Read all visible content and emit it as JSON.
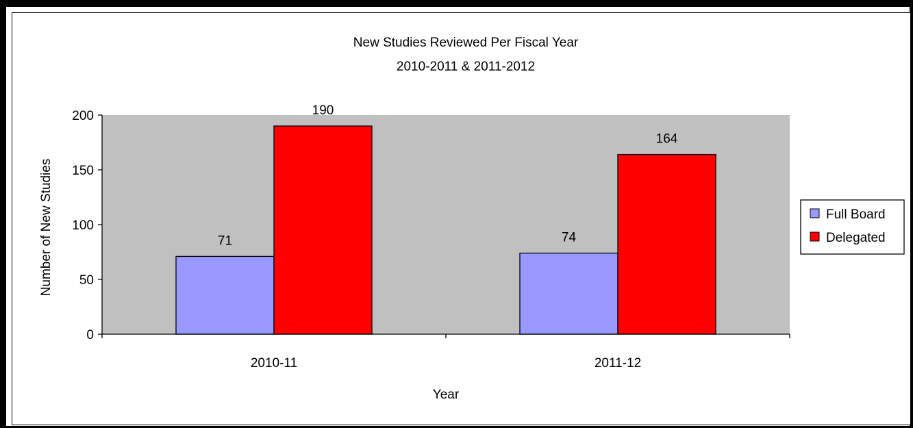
{
  "chart_data": {
    "type": "bar",
    "title": "New Studies Reviewed Per Fiscal Year",
    "subtitle": "2010-2011 & 2011-2012",
    "xlabel": "Year",
    "ylabel": "Number of New Studies",
    "categories": [
      "2010-11",
      "2011-12"
    ],
    "series": [
      {
        "name": "Full Board",
        "values": [
          71,
          74
        ],
        "color": "#9999ff"
      },
      {
        "name": "Delegated",
        "values": [
          190,
          164
        ],
        "color": "#ff0000"
      }
    ],
    "ylim": [
      0,
      200
    ],
    "yticks": [
      0,
      50,
      100,
      150,
      200
    ],
    "data_labels": true,
    "plot_background": "#c0c0c0",
    "grid": false,
    "legend_position": "right"
  }
}
